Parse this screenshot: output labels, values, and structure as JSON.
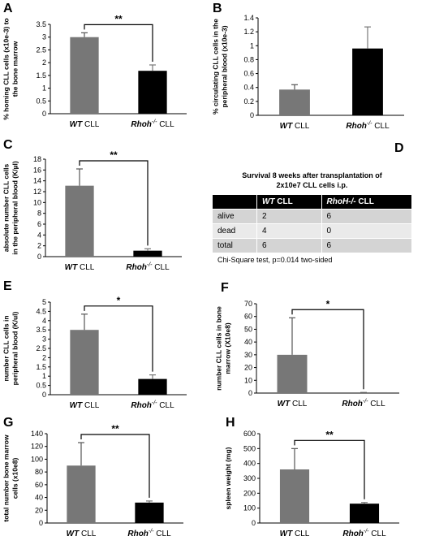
{
  "panel_labels": [
    "A",
    "B",
    "C",
    "D",
    "E",
    "F",
    "G",
    "H"
  ],
  "chart_data": [
    {
      "id": "A",
      "type": "bar",
      "categories": [
        "WT CLL",
        "Rhoh-/- CLL"
      ],
      "category_labels": [
        {
          "italic": "WT",
          "rest": " CLL"
        },
        {
          "italic": "Rhoh",
          "sup": "-/-",
          "rest": " CLL"
        }
      ],
      "values": [
        3.0,
        1.68
      ],
      "errors": [
        0.17,
        0.23
      ],
      "colors": [
        "#777777",
        "#000000"
      ],
      "ylabel": [
        "% homing CLL cells (x10e-3) to",
        "the bone marrow"
      ],
      "ylim": [
        0,
        3.5
      ],
      "yticks": [
        0,
        0.5,
        1,
        1.5,
        2,
        2.5,
        3,
        3.5
      ],
      "significance": "**"
    },
    {
      "id": "B",
      "type": "bar",
      "categories": [
        "WT CLL",
        "Rhoh-/- CLL"
      ],
      "category_labels": [
        {
          "italic": "WT",
          "rest": " CLL"
        },
        {
          "italic": "Rhoh",
          "sup": "-/-",
          "rest": " CLL"
        }
      ],
      "values": [
        0.37,
        0.96
      ],
      "errors": [
        0.07,
        0.31
      ],
      "colors": [
        "#777777",
        "#000000"
      ],
      "ylabel": [
        "% circulating CLL cells in the",
        "peripheral blood (x10e-3)"
      ],
      "ylim": [
        0,
        1.4
      ],
      "yticks": [
        0,
        0.2,
        0.4,
        0.6,
        0.8,
        1,
        1.2,
        1.4
      ],
      "significance": ""
    },
    {
      "id": "C",
      "type": "bar",
      "categories": [
        "WT CLL",
        "Rhoh-/- CLL"
      ],
      "category_labels": [
        {
          "italic": "WT",
          "rest": " CLL"
        },
        {
          "italic": "Rhoh",
          "sup": "-/-",
          "rest": " CLL"
        }
      ],
      "values": [
        13.1,
        1.1
      ],
      "errors": [
        3.1,
        0.35
      ],
      "colors": [
        "#777777",
        "#000000"
      ],
      "ylabel": [
        "absolute number CLL cells",
        "in the peripheral blood (K/µl)"
      ],
      "ylim": [
        0,
        18
      ],
      "yticks": [
        0,
        2,
        4,
        6,
        8,
        10,
        12,
        14,
        16,
        18
      ],
      "significance": "**"
    },
    {
      "id": "E",
      "type": "bar",
      "categories": [
        "WT CLL",
        "Rhoh-/- CLL"
      ],
      "category_labels": [
        {
          "italic": "WT",
          "rest": " CLL"
        },
        {
          "italic": "Rhoh",
          "sup": "-/-",
          "rest": " CLL"
        }
      ],
      "values": [
        3.5,
        0.85
      ],
      "errors": [
        0.85,
        0.22
      ],
      "colors": [
        "#777777",
        "#000000"
      ],
      "ylabel": [
        "number CLL cells in",
        "peripheral blood (K/ul)"
      ],
      "ylim": [
        0,
        5
      ],
      "yticks": [
        0,
        0.5,
        1,
        1.5,
        2,
        2.5,
        3,
        3.5,
        4,
        4.5,
        5
      ],
      "significance": "*"
    },
    {
      "id": "F",
      "type": "bar",
      "categories": [
        "WT CLL",
        "Rhoh-/- CLL"
      ],
      "category_labels": [
        {
          "italic": "WT",
          "rest": " CLL"
        },
        {
          "italic": "Rhoh",
          "sup": "-/-",
          "rest": " CLL"
        }
      ],
      "values": [
        30,
        0.3
      ],
      "errors": [
        29,
        0.2
      ],
      "colors": [
        "#777777",
        "#000000"
      ],
      "ylabel": [
        "number CLL cells in bone",
        "marrow (X10e8)"
      ],
      "ylim": [
        0,
        70
      ],
      "yticks": [
        0,
        10,
        20,
        30,
        40,
        50,
        60,
        70
      ],
      "significance": "*"
    },
    {
      "id": "G",
      "type": "bar",
      "categories": [
        "WT CLL",
        "Rhoh-/- CLL"
      ],
      "category_labels": [
        {
          "italic": "WT",
          "rest": " CLL"
        },
        {
          "italic": "Rhoh",
          "sup": "-/-",
          "rest": " CLL"
        }
      ],
      "values": [
        90,
        32
      ],
      "errors": [
        36,
        2.5
      ],
      "colors": [
        "#777777",
        "#000000"
      ],
      "ylabel": [
        "total number bone marrow",
        "cells (x10e8)"
      ],
      "ylim": [
        0,
        140
      ],
      "yticks": [
        0,
        20,
        40,
        60,
        80,
        100,
        120,
        140
      ],
      "significance": "**"
    },
    {
      "id": "H",
      "type": "bar",
      "categories": [
        "WT CLL",
        "Rhoh-/- CLL"
      ],
      "category_labels": [
        {
          "italic": "WT",
          "rest": " CLL"
        },
        {
          "italic": "Rhoh",
          "sup": "-/-",
          "rest": " CLL"
        }
      ],
      "values": [
        360,
        130
      ],
      "errors": [
        140,
        8
      ],
      "colors": [
        "#777777",
        "#000000"
      ],
      "ylabel": [
        "spleen weight (mg)"
      ],
      "ylim": [
        0,
        600
      ],
      "yticks": [
        0,
        100,
        200,
        300,
        400,
        500,
        600
      ],
      "significance": "**"
    }
  ],
  "table": {
    "title_line1": "Survival 8 weeks after transplantation of",
    "title_line2": "2x10e7 CLL cells i.p.",
    "headers": [
      "",
      "WT CLL",
      "RhoH-/- CLL"
    ],
    "header_italic": [
      "",
      "WT",
      "RhoH-/-"
    ],
    "header_rest": [
      "",
      " CLL",
      " CLL"
    ],
    "rows": [
      [
        "alive",
        "2",
        "6"
      ],
      [
        "dead",
        "4",
        "0"
      ],
      [
        "total",
        "6",
        "6"
      ]
    ],
    "note": "Chi-Square test, p=0.014 two-sided"
  }
}
